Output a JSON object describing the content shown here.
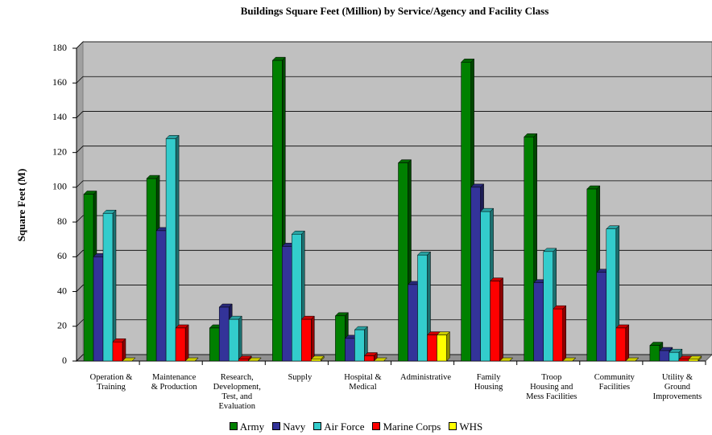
{
  "chart_data": {
    "type": "bar3d",
    "title": "Buildings Square  Feet (Million) by Service/Agency and Facility Class",
    "y_label": "Square Feet (M)",
    "categories": [
      "Operation &\nTraining",
      "Maintenance\n& Production",
      "Research,\nDevelopment,\nTest, and\nEvaluation",
      "Supply",
      "Hospital &\nMedical",
      "Administrative",
      "Family\nHousing",
      "Troop\nHousing and\nMess Facilities",
      "Community\nFacilities",
      "Utility &\nGround\nImprovements"
    ],
    "series": [
      {
        "name": "Army",
        "color": "#008000",
        "values": [
          96,
          105,
          19,
          173,
          26,
          114,
          172,
          129,
          99,
          9
        ]
      },
      {
        "name": "Navy",
        "color": "#333399",
        "values": [
          60,
          75,
          31,
          66,
          13,
          44,
          100,
          45,
          51,
          6
        ]
      },
      {
        "name": "Air Force",
        "color": "#33cccc",
        "values": [
          85,
          128,
          24,
          73,
          18,
          61,
          86,
          63,
          76,
          5
        ]
      },
      {
        "name": "Marine Corps",
        "color": "#ff0000",
        "values": [
          11,
          19,
          1,
          24,
          3,
          15,
          46,
          30,
          19,
          1
        ]
      },
      {
        "name": "WHS",
        "color": "#ffff00",
        "values": [
          0,
          0,
          0,
          1,
          0,
          15,
          0,
          0,
          0,
          1
        ]
      }
    ],
    "ylim": [
      0,
      180
    ],
    "yticks": [
      0,
      20,
      40,
      60,
      80,
      100,
      120,
      140,
      160,
      180
    ],
    "grid": true,
    "legend": "bottom"
  }
}
